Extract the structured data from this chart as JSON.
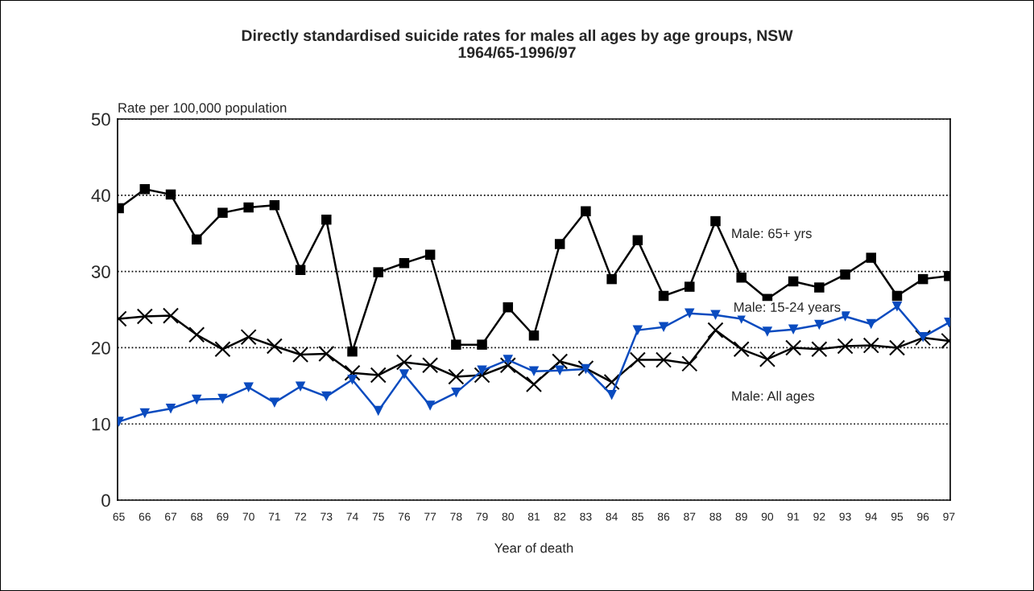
{
  "chart_data": {
    "type": "line",
    "title": "Directly standardised suicide rates for males all ages by age groups, NSW\n1964/65-1996/97",
    "xlabel": "Year of death",
    "ylabel": "Rate per 100,000 population",
    "categories": [
      "65",
      "66",
      "67",
      "68",
      "69",
      "70",
      "71",
      "72",
      "73",
      "74",
      "75",
      "76",
      "77",
      "78",
      "79",
      "80",
      "81",
      "82",
      "83",
      "84",
      "85",
      "86",
      "87",
      "88",
      "89",
      "90",
      "91",
      "92",
      "93",
      "94",
      "95",
      "96",
      "97"
    ],
    "series": [
      {
        "name": "Male: 65+ yrs",
        "color": "#000000",
        "marker": "square",
        "values": [
          38.3,
          40.8,
          40.1,
          34.2,
          37.7,
          38.4,
          38.7,
          30.2,
          36.8,
          19.5,
          29.9,
          31.1,
          32.2,
          20.4,
          20.4,
          25.3,
          21.6,
          33.6,
          37.9,
          29.0,
          34.1,
          26.8,
          28.0,
          36.6,
          29.2,
          26.4,
          28.7,
          27.9,
          29.6,
          31.8,
          26.8,
          29.0,
          29.4
        ]
      },
      {
        "name": "Male: 15-24 years",
        "color": "#0a4bbf",
        "marker": "triangle",
        "values": [
          10.3,
          11.4,
          12.0,
          13.2,
          13.3,
          14.8,
          12.8,
          14.9,
          13.6,
          15.8,
          11.7,
          16.5,
          12.4,
          14.1,
          17.0,
          18.4,
          16.9,
          17.0,
          17.2,
          13.8,
          22.3,
          22.7,
          24.5,
          24.3,
          23.8,
          22.1,
          22.4,
          23.0,
          24.1,
          23.1,
          25.4,
          21.4,
          23.3
        ]
      },
      {
        "name": "Male: All ages",
        "color": "#000000",
        "marker": "cross",
        "values": [
          23.8,
          24.1,
          24.2,
          21.7,
          19.8,
          21.4,
          20.2,
          19.1,
          19.2,
          16.7,
          16.4,
          18.1,
          17.7,
          16.2,
          16.4,
          17.7,
          15.2,
          18.2,
          17.3,
          15.5,
          18.4,
          18.4,
          17.9,
          22.3,
          19.8,
          18.5,
          20.0,
          19.8,
          20.2,
          20.3,
          20.0,
          21.3,
          20.9
        ]
      }
    ],
    "ylim": [
      0,
      50
    ],
    "yticks": [
      0,
      10,
      20,
      30,
      40,
      50
    ],
    "grid": "y",
    "legend": false,
    "line_style": "solid"
  }
}
